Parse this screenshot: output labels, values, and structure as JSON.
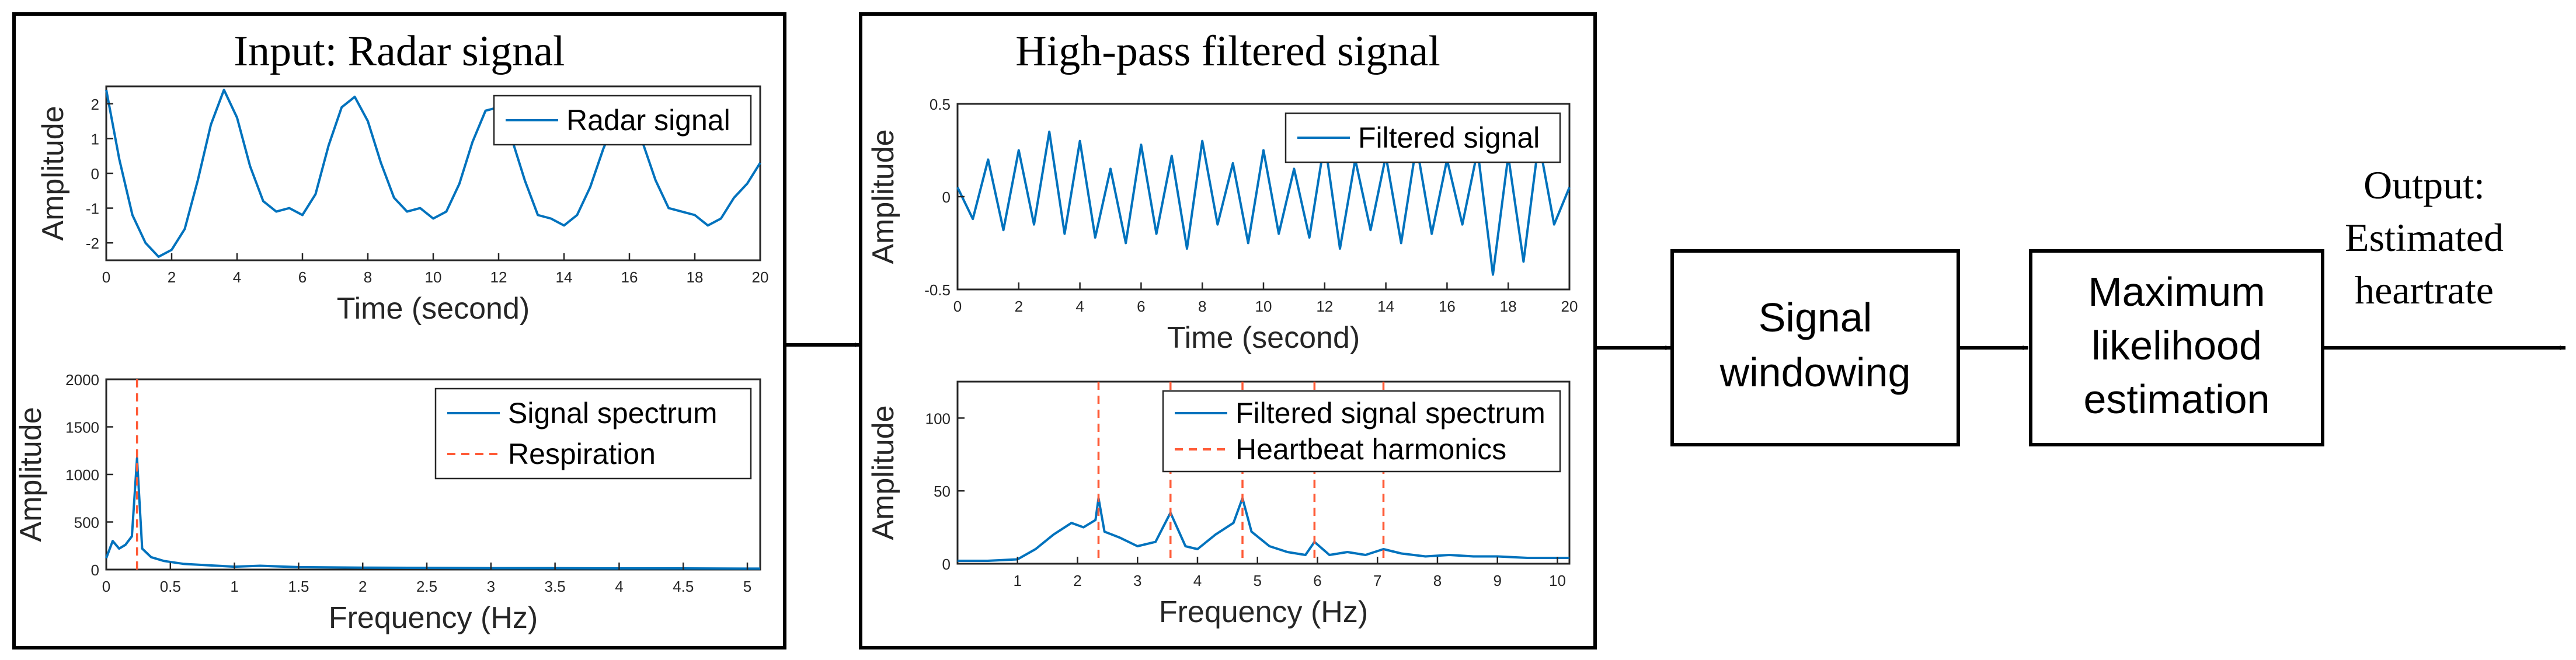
{
  "diagram": {
    "input_panel": {
      "title": "Input: Radar signal"
    },
    "filtered_panel": {
      "title": "High-pass filtered signal"
    },
    "blocks": [
      {
        "lines": [
          "Signal",
          "windowing"
        ]
      },
      {
        "lines": [
          "Maximum",
          "likelihood",
          "estimation"
        ]
      }
    ],
    "output": {
      "lines": [
        "Output:",
        "Estimated",
        "heartrate"
      ]
    }
  },
  "colors": {
    "signal": "#0072BD",
    "marker": "#FF5A36",
    "frame": "#000000",
    "axis": "#262626"
  },
  "chart_data": [
    {
      "id": "radar_time",
      "type": "line",
      "xlabel": "Time (second)",
      "ylabel": "Amplitude",
      "xlim": [
        0,
        20
      ],
      "ylim": [
        -2.5,
        2.5
      ],
      "xticks": [
        0,
        2,
        4,
        6,
        8,
        10,
        12,
        14,
        16,
        18,
        20
      ],
      "xtick_labels": [
        "0",
        "2",
        "4",
        "6",
        "8",
        "10",
        "12",
        "14",
        "16",
        "18",
        "20"
      ],
      "yticks": [
        -2,
        -1,
        0,
        1,
        2
      ],
      "ytick_labels": [
        "-2",
        "-1",
        "0",
        "1",
        "2"
      ],
      "legend": [
        "Radar signal"
      ],
      "legend_loc": "top-right",
      "series": [
        {
          "name": "Radar signal",
          "x": [
            0,
            0.4,
            0.8,
            1.2,
            1.6,
            2.0,
            2.4,
            2.8,
            3.2,
            3.6,
            4.0,
            4.4,
            4.8,
            5.2,
            5.6,
            6.0,
            6.4,
            6.8,
            7.2,
            7.6,
            8.0,
            8.4,
            8.8,
            9.2,
            9.6,
            10.0,
            10.4,
            10.8,
            11.2,
            11.6,
            12.0,
            12.4,
            12.8,
            13.2,
            13.6,
            14.0,
            14.4,
            14.8,
            15.2,
            15.6,
            16.0,
            16.4,
            16.8,
            17.2,
            17.6,
            18.0,
            18.4,
            18.8,
            19.2,
            19.6,
            20.0
          ],
          "y": [
            2.4,
            0.4,
            -1.2,
            -2.0,
            -2.4,
            -2.2,
            -1.6,
            -0.2,
            1.4,
            2.4,
            1.6,
            0.2,
            -0.8,
            -1.1,
            -1.0,
            -1.2,
            -0.6,
            0.8,
            1.9,
            2.2,
            1.5,
            0.3,
            -0.7,
            -1.1,
            -1.0,
            -1.3,
            -1.1,
            -0.3,
            0.9,
            1.8,
            1.9,
            1.0,
            -0.2,
            -1.2,
            -1.3,
            -1.5,
            -1.2,
            -0.4,
            0.7,
            1.6,
            1.7,
            0.9,
            -0.2,
            -1.0,
            -1.1,
            -1.2,
            -1.5,
            -1.3,
            -0.7,
            -0.3,
            0.3
          ]
        }
      ]
    },
    {
      "id": "radar_spectrum",
      "type": "line",
      "xlabel": "Frequency (Hz)",
      "ylabel": "Amplitude",
      "xlim": [
        0,
        5.1
      ],
      "ylim": [
        0,
        2000
      ],
      "xticks": [
        0,
        0.5,
        1,
        1.5,
        2,
        2.5,
        3,
        3.5,
        4,
        4.5,
        5
      ],
      "xtick_labels": [
        "0",
        "0.5",
        "1",
        "1.5",
        "2",
        "2.5",
        "3",
        "3.5",
        "4",
        "4.5",
        "5"
      ],
      "yticks": [
        0,
        500,
        1000,
        1500,
        2000
      ],
      "ytick_labels": [
        "0",
        "500",
        "1000",
        "1500",
        "2000"
      ],
      "legend": [
        "Signal spectrum",
        "Respiration"
      ],
      "legend_loc": "top-right",
      "markers": [
        0.24
      ],
      "series": [
        {
          "name": "Signal spectrum",
          "x": [
            0,
            0.05,
            0.1,
            0.15,
            0.2,
            0.24,
            0.28,
            0.35,
            0.45,
            0.6,
            0.8,
            1.0,
            1.2,
            1.5,
            2.0,
            2.5,
            3.0,
            3.5,
            4.0,
            4.5,
            5.0,
            5.1
          ],
          "y": [
            120,
            300,
            220,
            260,
            350,
            1170,
            220,
            130,
            90,
            60,
            45,
            30,
            40,
            25,
            20,
            18,
            15,
            15,
            12,
            12,
            10,
            10
          ]
        }
      ]
    },
    {
      "id": "filtered_time",
      "type": "line",
      "xlabel": "Time (second)",
      "ylabel": "Amplitude",
      "xlim": [
        0,
        20
      ],
      "ylim": [
        -0.5,
        0.5
      ],
      "xticks": [
        0,
        2,
        4,
        6,
        8,
        10,
        12,
        14,
        16,
        18,
        20
      ],
      "xtick_labels": [
        "0",
        "2",
        "4",
        "6",
        "8",
        "10",
        "12",
        "14",
        "16",
        "18",
        "20"
      ],
      "yticks": [
        -0.5,
        0,
        0.5
      ],
      "ytick_labels": [
        "-0.5",
        "0",
        "0.5"
      ],
      "legend": [
        "Filtered signal"
      ],
      "legend_loc": "top-right",
      "series": [
        {
          "name": "Filtered signal",
          "x": [
            0,
            0.5,
            1,
            1.5,
            2,
            2.5,
            3,
            3.5,
            4,
            4.5,
            5,
            5.5,
            6,
            6.5,
            7,
            7.5,
            8,
            8.5,
            9,
            9.5,
            10,
            10.5,
            11,
            11.5,
            12,
            12.5,
            13,
            13.5,
            14,
            14.5,
            15,
            15.5,
            16,
            16.5,
            17,
            17.5,
            18,
            18.5,
            19,
            19.5,
            20
          ],
          "y": [
            0.05,
            -0.12,
            0.2,
            -0.18,
            0.25,
            -0.15,
            0.35,
            -0.2,
            0.3,
            -0.22,
            0.15,
            -0.25,
            0.28,
            -0.2,
            0.22,
            -0.28,
            0.3,
            -0.15,
            0.18,
            -0.25,
            0.25,
            -0.2,
            0.15,
            -0.22,
            0.3,
            -0.28,
            0.2,
            -0.18,
            0.22,
            -0.25,
            0.28,
            -0.2,
            0.2,
            -0.15,
            0.25,
            -0.42,
            0.22,
            -0.35,
            0.3,
            -0.15,
            0.05
          ]
        }
      ]
    },
    {
      "id": "filtered_spectrum",
      "type": "line",
      "xlabel": "Frequency (Hz)",
      "ylabel": "Amplitude",
      "xlim": [
        0,
        10.2
      ],
      "ylim": [
        0,
        125
      ],
      "xticks": [
        1,
        2,
        3,
        4,
        5,
        6,
        7,
        8,
        9,
        10
      ],
      "xtick_labels": [
        "1",
        "2",
        "3",
        "4",
        "5",
        "6",
        "7",
        "8",
        "9",
        "10"
      ],
      "yticks": [
        0,
        50,
        100
      ],
      "ytick_labels": [
        "0",
        "50",
        "100"
      ],
      "legend": [
        "Filtered signal spectrum",
        "Heartbeat harmonics"
      ],
      "legend_loc": "top-right",
      "markers": [
        2.35,
        3.55,
        4.75,
        5.95,
        7.1
      ],
      "series": [
        {
          "name": "Filtered signal spectrum",
          "x": [
            0,
            0.5,
            1.0,
            1.3,
            1.6,
            1.9,
            2.1,
            2.3,
            2.35,
            2.45,
            2.7,
            3.0,
            3.3,
            3.55,
            3.8,
            4.0,
            4.3,
            4.6,
            4.75,
            4.9,
            5.2,
            5.5,
            5.8,
            5.95,
            6.2,
            6.5,
            6.8,
            7.1,
            7.4,
            7.8,
            8.2,
            8.6,
            9.0,
            9.5,
            10.0,
            10.2
          ],
          "y": [
            2,
            2,
            3,
            10,
            20,
            28,
            25,
            30,
            45,
            22,
            18,
            12,
            15,
            35,
            12,
            10,
            20,
            28,
            45,
            22,
            12,
            8,
            6,
            15,
            6,
            8,
            6,
            10,
            7,
            5,
            6,
            5,
            5,
            4,
            4,
            4
          ]
        }
      ]
    }
  ]
}
